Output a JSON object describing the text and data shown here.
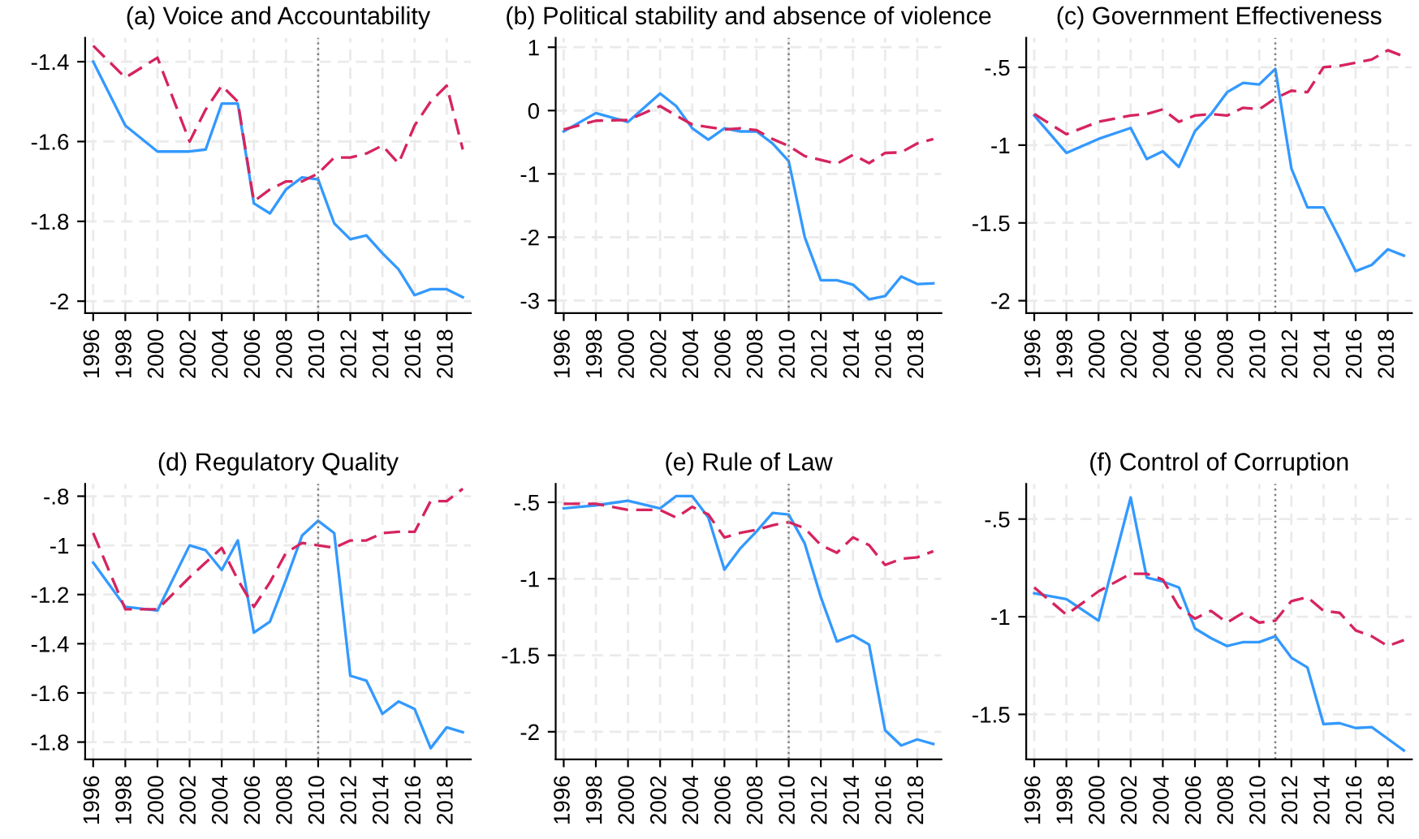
{
  "chart_data": [
    {
      "type": "line",
      "title": "(a) Voice and Accountability",
      "x": [
        1996,
        1998,
        2000,
        2002,
        2003,
        2004,
        2005,
        2006,
        2007,
        2008,
        2009,
        2010,
        2011,
        2012,
        2013,
        2014,
        2015,
        2016,
        2017,
        2018,
        2019
      ],
      "grid": true,
      "xlim": [
        1995.5,
        2019.5
      ],
      "xticks": [
        1996,
        1998,
        2000,
        2002,
        2004,
        2006,
        2008,
        2010,
        2012,
        2014,
        2016,
        2018
      ],
      "ylim": [
        -2.03,
        -1.34
      ],
      "yticks": [
        -2,
        -1.8,
        -1.6,
        -1.4
      ],
      "ref_lines": [
        {
          "axis": "x",
          "value": 2010,
          "color": "#808080",
          "line_style": "dotted"
        }
      ],
      "series": [
        {
          "color": "#3399ff",
          "line_style": "solid",
          "values": [
            -1.4,
            -1.56,
            -1.625,
            -1.625,
            -1.62,
            -1.505,
            -1.505,
            -1.755,
            -1.78,
            -1.72,
            -1.69,
            -1.695,
            -1.805,
            -1.845,
            -1.835,
            -1.88,
            -1.92,
            -1.985,
            -1.97,
            -1.97,
            -1.99
          ]
        },
        {
          "color": "#d6245e",
          "line_style": "dashed",
          "values": [
            -1.36,
            -1.44,
            -1.39,
            -1.6,
            -1.52,
            -1.46,
            -1.5,
            -1.75,
            -1.72,
            -1.7,
            -1.7,
            -1.68,
            -1.64,
            -1.64,
            -1.63,
            -1.61,
            -1.655,
            -1.56,
            -1.5,
            -1.46,
            -1.62
          ]
        }
      ]
    },
    {
      "type": "line",
      "title": "(b) Political stability and absence of violence",
      "x": [
        1996,
        1998,
        2000,
        2002,
        2003,
        2004,
        2005,
        2006,
        2007,
        2008,
        2009,
        2010,
        2011,
        2012,
        2013,
        2014,
        2015,
        2016,
        2017,
        2018,
        2019
      ],
      "grid": true,
      "xlim": [
        1995.5,
        2019.5
      ],
      "xticks": [
        1996,
        1998,
        2000,
        2002,
        2004,
        2006,
        2008,
        2010,
        2012,
        2014,
        2016,
        2018
      ],
      "ylim": [
        -3.2,
        1.15
      ],
      "yticks": [
        -3,
        -2,
        -1,
        0,
        1
      ],
      "ref_lines": [
        {
          "axis": "x",
          "value": 2010,
          "color": "#808080",
          "line_style": "dotted"
        }
      ],
      "series": [
        {
          "color": "#3399ff",
          "line_style": "solid",
          "values": [
            -0.33,
            -0.04,
            -0.18,
            0.27,
            0.07,
            -0.28,
            -0.46,
            -0.28,
            -0.33,
            -0.33,
            -0.52,
            -0.8,
            -2.0,
            -2.68,
            -2.68,
            -2.75,
            -2.98,
            -2.93,
            -2.62,
            -2.74,
            -2.73
          ]
        },
        {
          "color": "#d6245e",
          "line_style": "dashed",
          "values": [
            -0.3,
            -0.16,
            -0.15,
            0.07,
            -0.08,
            -0.22,
            -0.26,
            -0.3,
            -0.28,
            -0.31,
            -0.45,
            -0.56,
            -0.72,
            -0.78,
            -0.84,
            -0.7,
            -0.83,
            -0.67,
            -0.66,
            -0.52,
            -0.45
          ]
        }
      ]
    },
    {
      "type": "line",
      "title": "(c) Government Effectiveness",
      "x": [
        1996,
        1998,
        2000,
        2002,
        2003,
        2004,
        2005,
        2006,
        2007,
        2008,
        2009,
        2010,
        2011,
        2012,
        2013,
        2014,
        2015,
        2016,
        2017,
        2018,
        2019
      ],
      "grid": true,
      "xlim": [
        1995.5,
        2019.5
      ],
      "xticks": [
        1996,
        1998,
        2000,
        2002,
        2004,
        2006,
        2008,
        2010,
        2012,
        2014,
        2016,
        2018
      ],
      "ylim": [
        -2.08,
        -0.31
      ],
      "yticks": [
        -2,
        {
          "value": -1.5,
          "label": "-1.5"
        },
        -1,
        {
          "value": -0.5,
          "label": "-.5"
        }
      ],
      "ref_lines": [
        {
          "axis": "x",
          "value": 2011,
          "color": "#808080",
          "line_style": "dotted"
        }
      ],
      "series": [
        {
          "color": "#3399ff",
          "line_style": "solid",
          "values": [
            -0.81,
            -1.05,
            -0.96,
            -0.89,
            -1.09,
            -1.04,
            -1.14,
            -0.91,
            -0.8,
            -0.66,
            -0.6,
            -0.61,
            -0.51,
            -1.15,
            -1.4,
            -1.4,
            -1.6,
            -1.81,
            -1.77,
            -1.67,
            -1.71
          ]
        },
        {
          "color": "#d6245e",
          "line_style": "dashed",
          "values": [
            -0.8,
            -0.93,
            -0.85,
            -0.81,
            -0.8,
            -0.77,
            -0.85,
            -0.81,
            -0.8,
            -0.81,
            -0.76,
            -0.77,
            -0.7,
            -0.65,
            -0.66,
            -0.5,
            -0.49,
            -0.47,
            -0.45,
            -0.39,
            -0.43
          ]
        }
      ]
    },
    {
      "type": "line",
      "title": "(d) Regulatory Quality",
      "x": [
        1996,
        1998,
        2000,
        2002,
        2003,
        2004,
        2005,
        2006,
        2007,
        2008,
        2009,
        2010,
        2011,
        2012,
        2013,
        2014,
        2015,
        2016,
        2017,
        2018,
        2019
      ],
      "grid": true,
      "xlim": [
        1995.5,
        2019.5
      ],
      "xticks": [
        1996,
        1998,
        2000,
        2002,
        2004,
        2006,
        2008,
        2010,
        2012,
        2014,
        2016,
        2018
      ],
      "ylim": [
        -1.87,
        -0.75
      ],
      "yticks": [
        {
          "value": -1.8,
          "label": "-1.8"
        },
        {
          "value": -1.6,
          "label": "-1.6"
        },
        {
          "value": -1.4,
          "label": "-1.4"
        },
        {
          "value": -1.2,
          "label": "-1.2"
        },
        -1,
        {
          "value": -0.8,
          "label": "-.8"
        }
      ],
      "ref_lines": [
        {
          "axis": "x",
          "value": 2010,
          "color": "#808080",
          "line_style": "dotted"
        }
      ],
      "series": [
        {
          "color": "#3399ff",
          "line_style": "solid",
          "values": [
            -1.07,
            -1.25,
            -1.265,
            -1.0,
            -1.02,
            -1.1,
            -0.98,
            -1.355,
            -1.31,
            -1.14,
            -0.96,
            -0.9,
            -0.95,
            -1.53,
            -1.55,
            -1.685,
            -1.635,
            -1.665,
            -1.825,
            -1.74,
            -1.76
          ]
        },
        {
          "color": "#d6245e",
          "line_style": "dashed",
          "values": [
            -0.95,
            -1.26,
            -1.26,
            -1.13,
            -1.07,
            -1.01,
            -1.14,
            -1.25,
            -1.15,
            -1.03,
            -0.99,
            -1.0,
            -1.01,
            -0.98,
            -0.98,
            -0.95,
            -0.945,
            -0.945,
            -0.82,
            -0.82,
            -0.77
          ]
        }
      ]
    },
    {
      "type": "line",
      "title": "(e) Rule of Law",
      "x": [
        1996,
        1998,
        2000,
        2002,
        2003,
        2004,
        2005,
        2006,
        2007,
        2008,
        2009,
        2010,
        2011,
        2012,
        2013,
        2014,
        2015,
        2016,
        2017,
        2018,
        2019
      ],
      "grid": true,
      "xlim": [
        1995.5,
        2019.5
      ],
      "xticks": [
        1996,
        1998,
        2000,
        2002,
        2004,
        2006,
        2008,
        2010,
        2012,
        2014,
        2016,
        2018
      ],
      "ylim": [
        -2.18,
        -0.38
      ],
      "yticks": [
        -2,
        {
          "value": -1.5,
          "label": "-1.5"
        },
        -1,
        {
          "value": -0.5,
          "label": "-.5"
        }
      ],
      "ref_lines": [
        {
          "axis": "x",
          "value": 2010,
          "color": "#808080",
          "line_style": "dotted"
        }
      ],
      "series": [
        {
          "color": "#3399ff",
          "line_style": "solid",
          "values": [
            -0.54,
            -0.52,
            -0.49,
            -0.54,
            -0.46,
            -0.46,
            -0.6,
            -0.94,
            -0.8,
            -0.69,
            -0.57,
            -0.58,
            -0.77,
            -1.12,
            -1.41,
            -1.37,
            -1.43,
            -1.99,
            -2.09,
            -2.05,
            -2.08
          ]
        },
        {
          "color": "#d6245e",
          "line_style": "dashed",
          "values": [
            -0.51,
            -0.51,
            -0.55,
            -0.55,
            -0.6,
            -0.53,
            -0.58,
            -0.73,
            -0.7,
            -0.68,
            -0.65,
            -0.63,
            -0.67,
            -0.78,
            -0.83,
            -0.73,
            -0.78,
            -0.91,
            -0.87,
            -0.86,
            -0.82
          ]
        }
      ]
    },
    {
      "type": "line",
      "title": "(f) Control of Corruption",
      "x": [
        1996,
        1998,
        2000,
        2002,
        2003,
        2004,
        2005,
        2006,
        2007,
        2008,
        2009,
        2010,
        2011,
        2012,
        2013,
        2014,
        2015,
        2016,
        2017,
        2018,
        2019
      ],
      "grid": true,
      "xlim": [
        1995.5,
        2019.5
      ],
      "xticks": [
        1996,
        1998,
        2000,
        2002,
        2004,
        2006,
        2008,
        2010,
        2012,
        2014,
        2016,
        2018
      ],
      "ylim": [
        -1.73,
        -0.32
      ],
      "yticks": [
        {
          "value": -1.5,
          "label": "-1.5"
        },
        -1,
        {
          "value": -0.5,
          "label": "-.5"
        }
      ],
      "ref_lines": [
        {
          "axis": "x",
          "value": 2011,
          "color": "#808080",
          "line_style": "dotted"
        }
      ],
      "series": [
        {
          "color": "#3399ff",
          "line_style": "solid",
          "values": [
            -0.88,
            -0.91,
            -1.02,
            -0.39,
            -0.8,
            -0.82,
            -0.85,
            -1.06,
            -1.11,
            -1.15,
            -1.13,
            -1.13,
            -1.1,
            -1.21,
            -1.26,
            -1.55,
            -1.545,
            -1.57,
            -1.565,
            -1.625,
            -1.685
          ]
        },
        {
          "color": "#d6245e",
          "line_style": "dashed",
          "values": [
            -0.85,
            -0.99,
            -0.87,
            -0.78,
            -0.78,
            -0.81,
            -0.95,
            -1.01,
            -0.97,
            -1.03,
            -0.98,
            -1.03,
            -1.02,
            -0.92,
            -0.9,
            -0.97,
            -0.98,
            -1.07,
            -1.1,
            -1.15,
            -1.12
          ]
        }
      ]
    }
  ]
}
